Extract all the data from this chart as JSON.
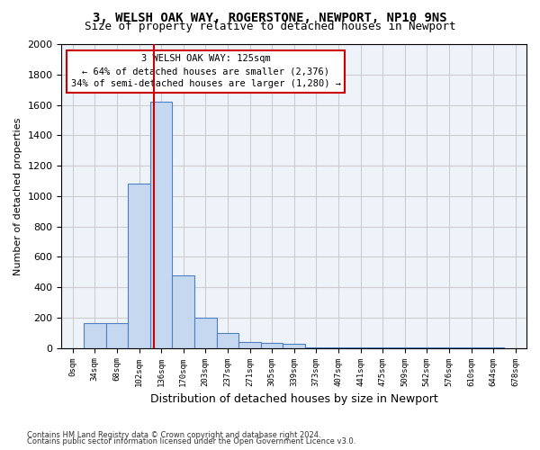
{
  "title1": "3, WELSH OAK WAY, ROGERSTONE, NEWPORT, NP10 9NS",
  "title2": "Size of property relative to detached houses in Newport",
  "xlabel": "Distribution of detached houses by size in Newport",
  "ylabel": "Number of detached properties",
  "bar_labels": [
    "0sqm",
    "34sqm",
    "68sqm",
    "102sqm",
    "136sqm",
    "170sqm",
    "203sqm",
    "237sqm",
    "271sqm",
    "305sqm",
    "339sqm",
    "373sqm",
    "407sqm",
    "441sqm",
    "475sqm",
    "509sqm",
    "542sqm",
    "576sqm",
    "610sqm",
    "644sqm",
    "678sqm"
  ],
  "bar_heights": [
    0,
    163,
    163,
    1080,
    1620,
    475,
    200,
    100,
    40,
    35,
    25,
    5,
    5,
    5,
    5,
    5,
    5,
    5,
    5,
    5,
    0
  ],
  "bar_color": "#c5d8f0",
  "bar_edge_color": "#4f7fbf",
  "property_size": 125,
  "property_label": "3 WELSH OAK WAY: 125sqm",
  "annotation_line1": "← 64% of detached houses are smaller (2,376)",
  "annotation_line2": "34% of semi-detached houses are larger (1,280) →",
  "vline_color": "#cc0000",
  "ylim": [
    0,
    2000
  ],
  "yticks": [
    0,
    200,
    400,
    600,
    800,
    1000,
    1200,
    1400,
    1600,
    1800,
    2000
  ],
  "footnote1": "Contains HM Land Registry data © Crown copyright and database right 2024.",
  "footnote2": "Contains public sector information licensed under the Open Government Licence v3.0.",
  "background_color": "#ffffff",
  "grid_color": "#cccccc"
}
